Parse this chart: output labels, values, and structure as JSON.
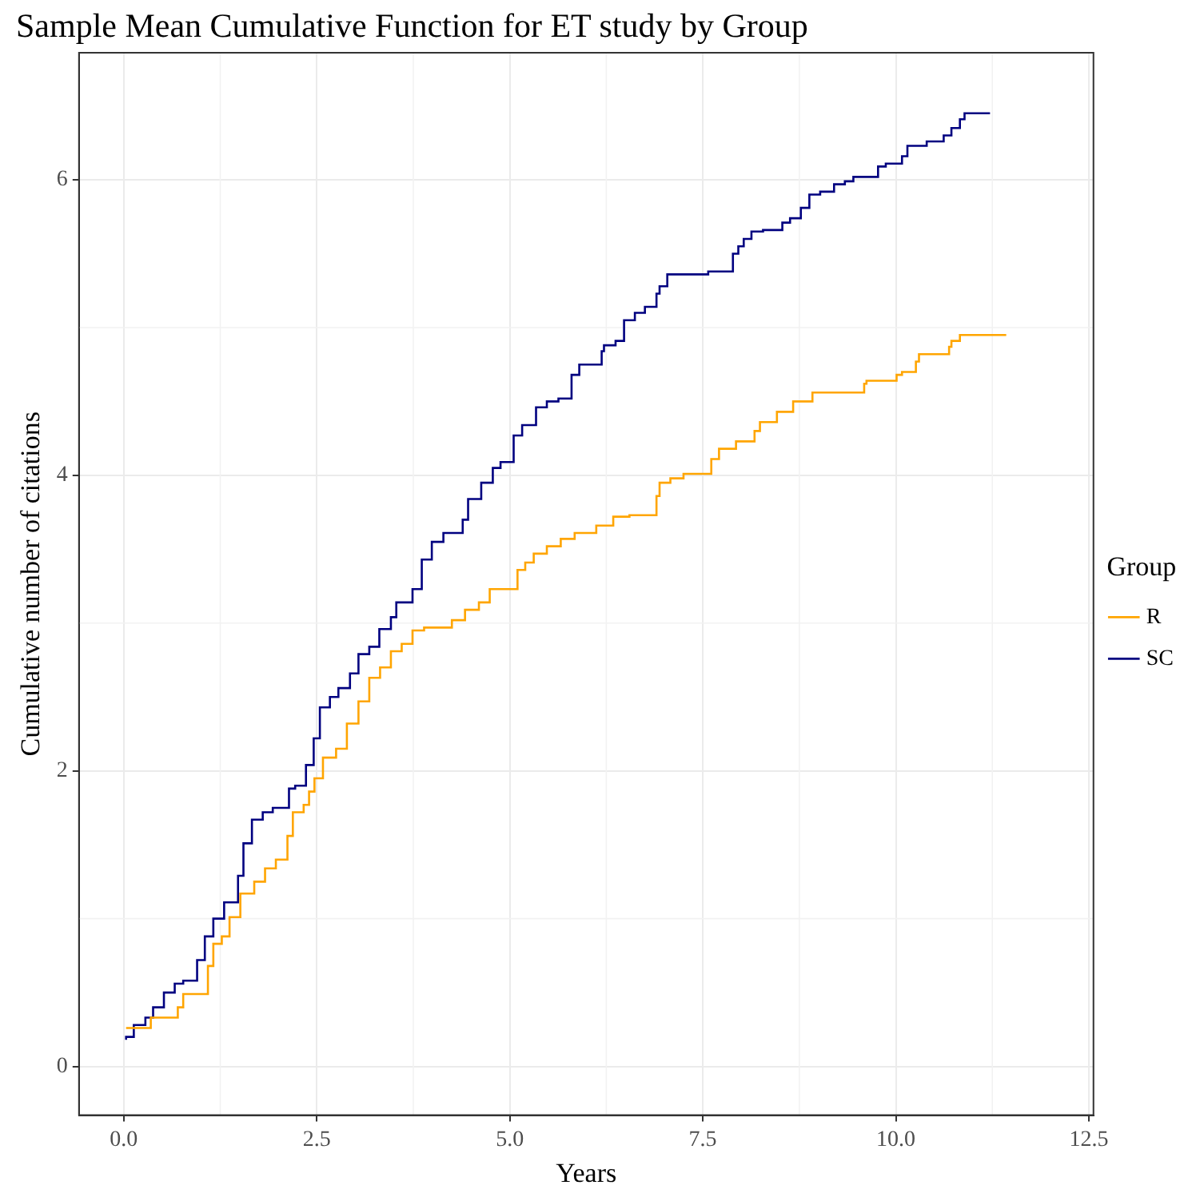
{
  "chart_data": {
    "type": "step",
    "title": "Sample Mean Cumulative Function for ET study by Group",
    "xlabel": "Years",
    "ylabel": "Cumulative number of citations",
    "legend_title": "Group",
    "legend": "right",
    "grid": true,
    "xlim": [
      -0.58,
      12.56
    ],
    "ylim": [
      -0.33,
      6.86
    ],
    "xticks": [
      {
        "value": 0,
        "label": "0.0"
      },
      {
        "value": 2.5,
        "label": "2.5"
      },
      {
        "value": 5,
        "label": "5.0"
      },
      {
        "value": 7.5,
        "label": "7.5"
      },
      {
        "value": 10,
        "label": "10.0"
      },
      {
        "value": 12.5,
        "label": "12.5"
      }
    ],
    "yticks": [
      0,
      2,
      4,
      6
    ],
    "series": [
      {
        "name": "R",
        "color": "#ffa500",
        "x": [
          0.03,
          0.35,
          0.45,
          0.7,
          0.77,
          0.88,
          1.09,
          1.16,
          1.27,
          1.37,
          1.51,
          1.69,
          1.83,
          1.97,
          2.12,
          2.19,
          2.33,
          2.4,
          2.47,
          2.58,
          2.75,
          2.89,
          3.04,
          3.18,
          3.32,
          3.46,
          3.6,
          3.74,
          3.89,
          4.25,
          4.42,
          4.6,
          4.74,
          4.92,
          5.1,
          5.2,
          5.31,
          5.48,
          5.66,
          5.84,
          6.12,
          6.34,
          6.55,
          6.9,
          6.94,
          7.08,
          7.25,
          7.61,
          7.71,
          7.93,
          8.17,
          8.24,
          8.46,
          8.67,
          8.92,
          9.09,
          9.59,
          9.62,
          9.77,
          10.01,
          10.08,
          10.26,
          10.3,
          10.47,
          10.69,
          10.72,
          10.83,
          10.9,
          11.43
        ],
        "values": [
          0.26,
          0.26,
          0.33,
          0.33,
          0.4,
          0.49,
          0.49,
          0.68,
          0.83,
          0.88,
          1.01,
          1.17,
          1.25,
          1.34,
          1.4,
          1.56,
          1.72,
          1.77,
          1.86,
          1.95,
          2.09,
          2.15,
          2.32,
          2.47,
          2.63,
          2.7,
          2.81,
          2.86,
          2.95,
          2.97,
          3.02,
          3.09,
          3.14,
          3.23,
          3.23,
          3.36,
          3.41,
          3.47,
          3.52,
          3.57,
          3.61,
          3.66,
          3.72,
          3.73,
          3.86,
          3.95,
          3.98,
          4.01,
          4.11,
          4.18,
          4.23,
          4.3,
          4.36,
          4.43,
          4.5,
          4.56,
          4.56,
          4.62,
          4.64,
          4.64,
          4.68,
          4.7,
          4.77,
          4.82,
          4.82,
          4.87,
          4.91,
          4.95,
          4.95
        ]
      },
      {
        "name": "SC",
        "color": "#000080",
        "x": [
          0.03,
          0.13,
          0.28,
          0.38,
          0.52,
          0.66,
          0.77,
          0.95,
          1.05,
          1.16,
          1.3,
          1.48,
          1.55,
          1.66,
          1.8,
          1.93,
          2.14,
          2.22,
          2.36,
          2.46,
          2.54,
          2.67,
          2.78,
          2.93,
          3.04,
          3.18,
          3.31,
          3.46,
          3.53,
          3.74,
          3.86,
          3.99,
          4.14,
          4.39,
          4.46,
          4.63,
          4.78,
          4.88,
          5.05,
          5.16,
          5.34,
          5.48,
          5.63,
          5.8,
          5.9,
          6.05,
          6.19,
          6.22,
          6.37,
          6.48,
          6.62,
          6.75,
          6.9,
          6.94,
          7.04,
          7.22,
          7.57,
          7.89,
          7.96,
          8.03,
          8.13,
          8.28,
          8.53,
          8.63,
          8.77,
          8.88,
          9.02,
          9.2,
          9.34,
          9.45,
          9.77,
          9.87,
          10.08,
          10.15,
          10.4,
          10.62,
          10.72,
          10.83,
          10.89,
          10.95,
          11.22
        ],
        "values": [
          0.18,
          0.2,
          0.28,
          0.33,
          0.4,
          0.5,
          0.56,
          0.58,
          0.72,
          0.88,
          1.0,
          1.11,
          1.29,
          1.51,
          1.67,
          1.72,
          1.75,
          1.88,
          1.9,
          2.04,
          2.22,
          2.43,
          2.5,
          2.56,
          2.66,
          2.79,
          2.84,
          2.96,
          3.04,
          3.14,
          3.23,
          3.43,
          3.55,
          3.61,
          3.7,
          3.84,
          3.95,
          4.05,
          4.09,
          4.27,
          4.34,
          4.46,
          4.5,
          4.52,
          4.68,
          4.75,
          4.75,
          4.84,
          4.88,
          4.91,
          5.05,
          5.1,
          5.14,
          5.23,
          5.28,
          5.36,
          5.36,
          5.38,
          5.5,
          5.55,
          5.6,
          5.65,
          5.66,
          5.71,
          5.74,
          5.81,
          5.9,
          5.92,
          5.97,
          5.99,
          6.02,
          6.09,
          6.11,
          6.16,
          6.23,
          6.26,
          6.3,
          6.35,
          6.41,
          6.45,
          6.45
        ]
      }
    ]
  }
}
